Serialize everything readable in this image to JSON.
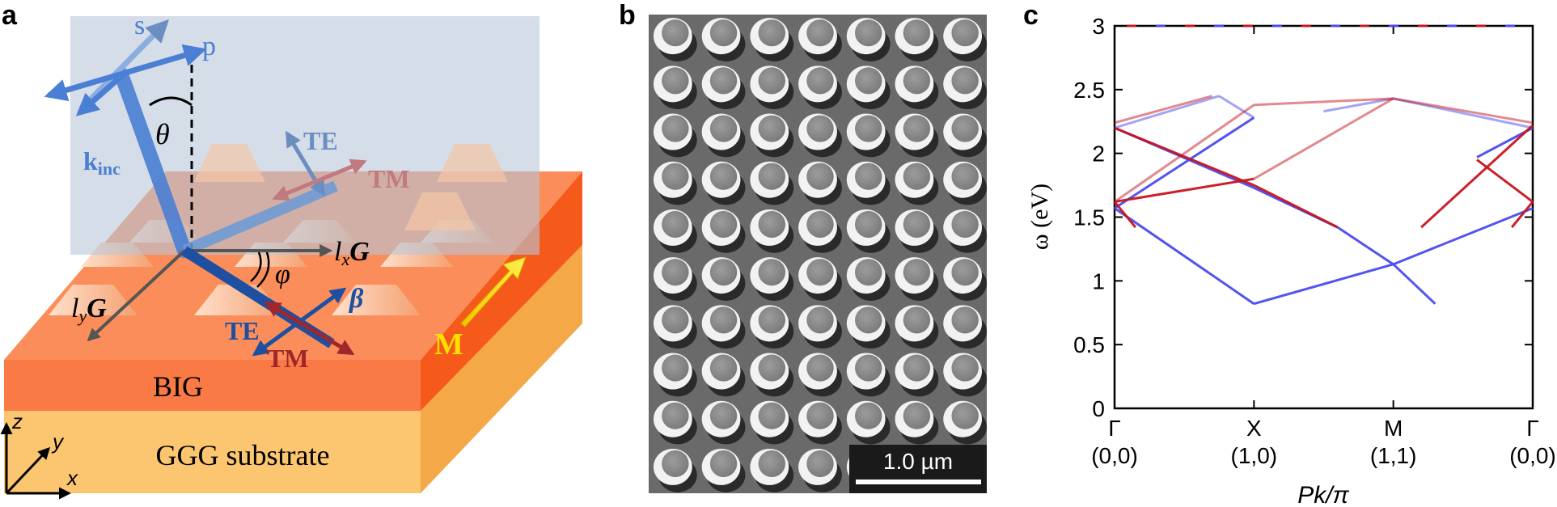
{
  "panel_labels": {
    "a": "a",
    "b": "b",
    "c": "c"
  },
  "panel_a": {
    "s": "s",
    "p": "p",
    "theta": "θ",
    "k_main": "k",
    "k_sub": "inc",
    "te_top": "TE",
    "tm_top": "TM",
    "lxG_l": "l",
    "lxG_sub": "x",
    "lxG_G": "G",
    "phi": "φ",
    "lyG_l": "l",
    "lyG_sub": "y",
    "lyG_G": "G",
    "beta": "β",
    "te_bottom": "TE",
    "tm_bottom": "TM",
    "M": "M",
    "big": "BIG",
    "substrate": "GGG substrate",
    "axis_z": "z",
    "axis_y": "y",
    "axis_x": "x",
    "colors": {
      "blue": "#4a7fd4",
      "red": "#b8272c",
      "film": "#f07a3c",
      "substrate": "#fcc570",
      "magnet": "#ffe100"
    }
  },
  "panel_b": {
    "scale_bar": "1.0 µm",
    "grid_rows": 10,
    "grid_cols": 7
  },
  "chart_data": {
    "type": "line",
    "title": "",
    "xlabel": "Pk/π",
    "ylabel": "ω (eV)",
    "ylim": [
      0,
      3
    ],
    "yticks": [
      0,
      0.5,
      1,
      1.5,
      2,
      2.5,
      3
    ],
    "ytick_labels": [
      "0",
      "0.5",
      "1",
      "1.5",
      "2",
      "2.5",
      "3"
    ],
    "xticks": [
      {
        "symbol": "Γ",
        "coord": "(0,0)"
      },
      {
        "symbol": "X",
        "coord": "(1,0)"
      },
      {
        "symbol": "M",
        "coord": "(1,1)"
      },
      {
        "symbol": "Γ",
        "coord": "(0,0)"
      }
    ],
    "grid": false,
    "legend": "none",
    "colors": {
      "blue": "#4a4aee",
      "red": "#c8141e"
    },
    "series": [
      {
        "color": "blue",
        "x": [
          0,
          1
        ],
        "y": [
          1.57,
          0.82
        ]
      },
      {
        "color": "blue",
        "x": [
          1,
          2
        ],
        "y": [
          0.82,
          1.13
        ]
      },
      {
        "color": "blue",
        "x": [
          2,
          3
        ],
        "y": [
          1.13,
          1.57
        ]
      },
      {
        "color": "blue",
        "x": [
          1.6,
          2
        ],
        "y": [
          1.42,
          1.13
        ]
      },
      {
        "color": "blue",
        "x": [
          2,
          2.3
        ],
        "y": [
          1.13,
          0.82
        ]
      },
      {
        "color": "blue",
        "x": [
          0,
          1
        ],
        "y": [
          2.2,
          1.73
        ]
      },
      {
        "color": "blue",
        "x": [
          1,
          1.6
        ],
        "y": [
          1.73,
          1.42
        ]
      },
      {
        "color": "blue",
        "x": [
          0,
          1
        ],
        "y": [
          1.57,
          2.28
        ]
      },
      {
        "color": "blue",
        "x": [
          1.5,
          2
        ],
        "y": [
          2.33,
          2.43
        ]
      },
      {
        "color": "blue",
        "x": [
          2,
          3
        ],
        "y": [
          2.43,
          2.2
        ]
      },
      {
        "color": "blue",
        "x": [
          2.6,
          3
        ],
        "y": [
          1.97,
          2.2
        ]
      },
      {
        "color": "blue",
        "x": [
          0,
          0.75
        ],
        "y": [
          2.2,
          2.45
        ]
      },
      {
        "color": "blue",
        "x": [
          0.75,
          1
        ],
        "y": [
          2.45,
          2.28
        ]
      },
      {
        "color": "red",
        "x": [
          0,
          1
        ],
        "y": [
          1.62,
          1.8
        ]
      },
      {
        "color": "red",
        "x": [
          1,
          2
        ],
        "y": [
          1.8,
          2.43
        ]
      },
      {
        "color": "red",
        "x": [
          0,
          1
        ],
        "y": [
          2.2,
          1.75
        ]
      },
      {
        "color": "red",
        "x": [
          1,
          1.6
        ],
        "y": [
          1.75,
          1.42
        ]
      },
      {
        "color": "red",
        "x": [
          0,
          0.15
        ],
        "y": [
          1.62,
          1.42
        ]
      },
      {
        "color": "red",
        "x": [
          0,
          1
        ],
        "y": [
          1.62,
          2.38
        ]
      },
      {
        "color": "red",
        "x": [
          1,
          2
        ],
        "y": [
          2.38,
          2.43
        ]
      },
      {
        "color": "red",
        "x": [
          2,
          3
        ],
        "y": [
          2.43,
          2.24
        ]
      },
      {
        "color": "red",
        "x": [
          2.2,
          3
        ],
        "y": [
          1.42,
          2.22
        ]
      },
      {
        "color": "red",
        "x": [
          2.6,
          3
        ],
        "y": [
          1.95,
          1.62
        ]
      },
      {
        "color": "red",
        "x": [
          2.85,
          3
        ],
        "y": [
          1.42,
          1.62
        ]
      },
      {
        "color": "red",
        "x": [
          0,
          0.7
        ],
        "y": [
          2.24,
          2.45
        ]
      }
    ]
  }
}
